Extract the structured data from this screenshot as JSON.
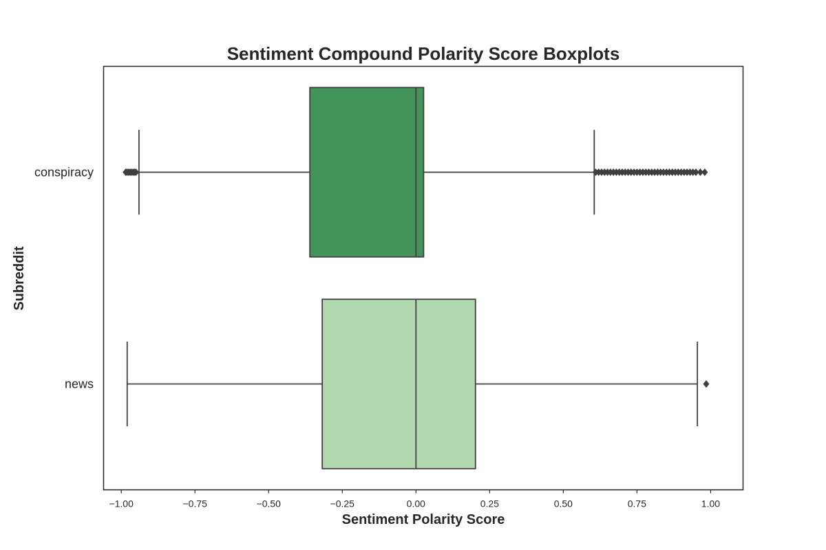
{
  "chart_data": {
    "type": "boxplot",
    "orientation": "horizontal",
    "title": "Sentiment Compound Polarity Score Boxplots",
    "xlabel": "Sentiment Polarity Score",
    "ylabel": "Subreddit",
    "xlim": [
      -1.06,
      1.11
    ],
    "xticks": [
      -1.0,
      -0.75,
      -0.5,
      -0.25,
      0.0,
      0.25,
      0.5,
      0.75,
      1.0
    ],
    "xtick_labels": [
      "−1.00",
      "−0.75",
      "−0.50",
      "−0.25",
      "0.00",
      "0.25",
      "0.50",
      "0.75",
      "1.00"
    ],
    "grid": false,
    "categories": [
      "conspiracy",
      "news"
    ],
    "series": [
      {
        "category": "conspiracy",
        "color": "#43945a",
        "whisker_low": -0.94,
        "q1": -0.36,
        "median": 0.0,
        "q3": 0.026,
        "whisker_high": 0.605,
        "outliers": [
          -0.985,
          -0.98,
          -0.975,
          -0.97,
          -0.965,
          -0.96,
          -0.955,
          -0.95,
          0.61,
          0.62,
          0.63,
          0.64,
          0.65,
          0.66,
          0.67,
          0.68,
          0.69,
          0.7,
          0.71,
          0.72,
          0.73,
          0.74,
          0.75,
          0.76,
          0.77,
          0.78,
          0.79,
          0.8,
          0.81,
          0.82,
          0.83,
          0.84,
          0.85,
          0.86,
          0.87,
          0.88,
          0.89,
          0.9,
          0.91,
          0.92,
          0.93,
          0.94,
          0.95,
          0.965,
          0.98
        ]
      },
      {
        "category": "news",
        "color": "#b2d8b0",
        "whisker_low": -0.98,
        "q1": -0.318,
        "median": 0.0,
        "q3": 0.202,
        "whisker_high": 0.955,
        "outliers": [
          0.985
        ]
      }
    ]
  }
}
